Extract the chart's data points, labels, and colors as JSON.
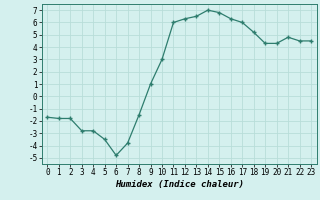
{
  "x": [
    0,
    1,
    2,
    3,
    4,
    5,
    6,
    7,
    8,
    9,
    10,
    11,
    12,
    13,
    14,
    15,
    16,
    17,
    18,
    19,
    20,
    21,
    22,
    23
  ],
  "y": [
    -1.7,
    -1.8,
    -1.8,
    -2.8,
    -2.8,
    -3.5,
    -4.8,
    -3.8,
    -1.5,
    1.0,
    3.0,
    6.0,
    6.3,
    6.5,
    7.0,
    6.8,
    6.3,
    6.0,
    5.2,
    4.3,
    4.3,
    4.8,
    4.5,
    4.5
  ],
  "xlabel": "Humidex (Indice chaleur)",
  "line_color": "#2e7d6e",
  "bg_color": "#d4f0ee",
  "grid_color": "#b8ddd9",
  "ylim": [
    -5.5,
    7.5
  ],
  "xlim": [
    -0.5,
    23.5
  ],
  "yticks": [
    -5,
    -4,
    -3,
    -2,
    -1,
    0,
    1,
    2,
    3,
    4,
    5,
    6,
    7
  ],
  "xticks": [
    0,
    1,
    2,
    3,
    4,
    5,
    6,
    7,
    8,
    9,
    10,
    11,
    12,
    13,
    14,
    15,
    16,
    17,
    18,
    19,
    20,
    21,
    22,
    23
  ],
  "tick_fontsize": 5.5,
  "xlabel_fontsize": 6.5
}
